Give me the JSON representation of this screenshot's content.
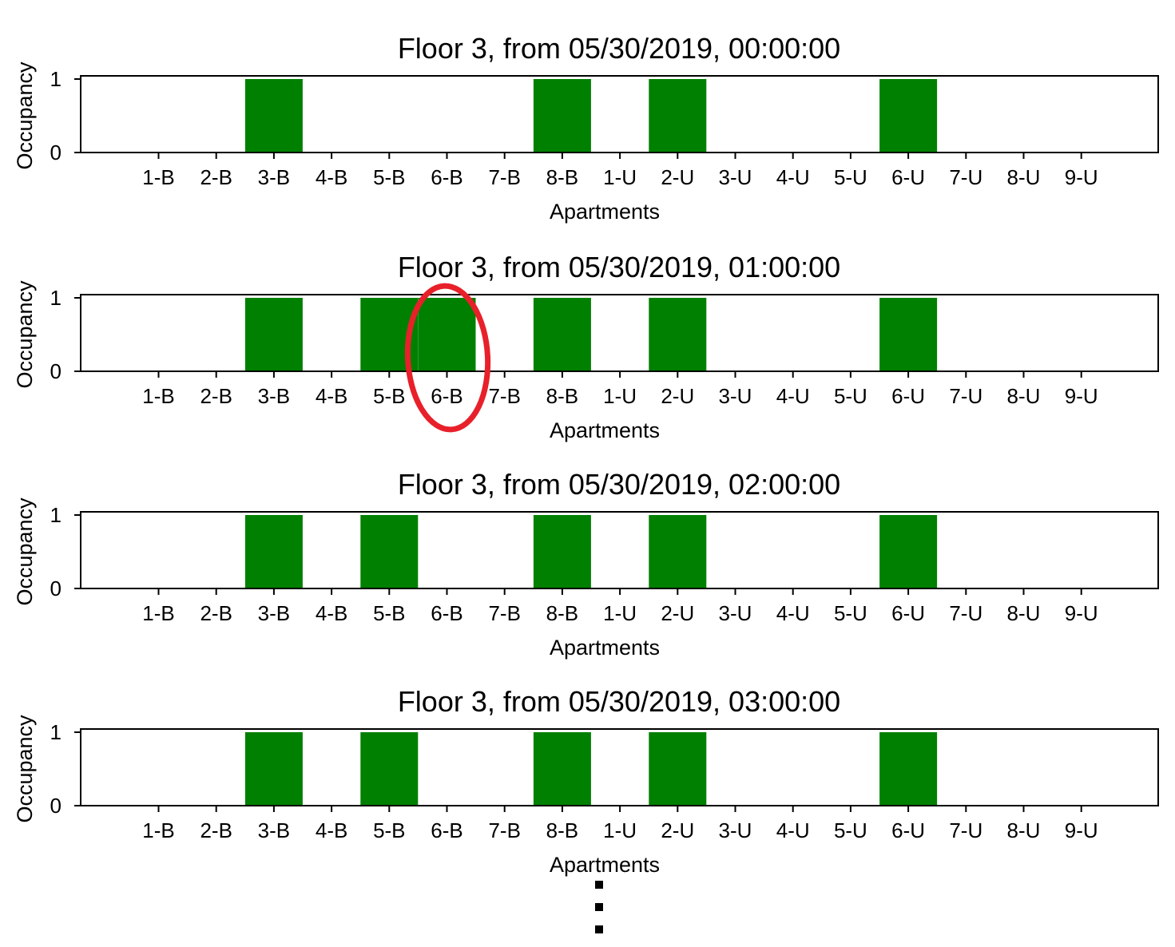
{
  "chart_data": [
    {
      "type": "bar",
      "title": "Floor 3, from 05/30/2019, 00:00:00",
      "xlabel": "Apartments",
      "ylabel": "Occupancy",
      "ylim": [
        0,
        1
      ],
      "yticks": [
        "0",
        "1"
      ],
      "categories": [
        "1-B",
        "2-B",
        "3-B",
        "4-B",
        "5-B",
        "6-B",
        "7-B",
        "8-B",
        "1-U",
        "2-U",
        "3-U",
        "4-U",
        "5-U",
        "6-U",
        "7-U",
        "8-U",
        "9-U"
      ],
      "values": [
        0,
        0,
        1,
        0,
        0,
        0,
        0,
        1,
        0,
        1,
        0,
        0,
        0,
        1,
        0,
        0,
        0
      ],
      "color": "#008000"
    },
    {
      "type": "bar",
      "title": "Floor 3, from 05/30/2019, 01:00:00",
      "xlabel": "Apartments",
      "ylabel": "Occupancy",
      "ylim": [
        0,
        1
      ],
      "yticks": [
        "0",
        "1"
      ],
      "categories": [
        "1-B",
        "2-B",
        "3-B",
        "4-B",
        "5-B",
        "6-B",
        "7-B",
        "8-B",
        "1-U",
        "2-U",
        "3-U",
        "4-U",
        "5-U",
        "6-U",
        "7-U",
        "8-U",
        "9-U"
      ],
      "values": [
        0,
        0,
        1,
        0,
        1,
        1,
        0,
        1,
        0,
        1,
        0,
        0,
        0,
        1,
        0,
        0,
        0
      ],
      "color": "#008000",
      "highlight": {
        "category": "6-B",
        "color": "#e8202a"
      }
    },
    {
      "type": "bar",
      "title": "Floor 3, from 05/30/2019, 02:00:00",
      "xlabel": "Apartments",
      "ylabel": "Occupancy",
      "ylim": [
        0,
        1
      ],
      "yticks": [
        "0",
        "1"
      ],
      "categories": [
        "1-B",
        "2-B",
        "3-B",
        "4-B",
        "5-B",
        "6-B",
        "7-B",
        "8-B",
        "1-U",
        "2-U",
        "3-U",
        "4-U",
        "5-U",
        "6-U",
        "7-U",
        "8-U",
        "9-U"
      ],
      "values": [
        0,
        0,
        1,
        0,
        1,
        0,
        0,
        1,
        0,
        1,
        0,
        0,
        0,
        1,
        0,
        0,
        0
      ],
      "color": "#008000"
    },
    {
      "type": "bar",
      "title": "Floor 3, from 05/30/2019, 03:00:00",
      "xlabel": "Apartments",
      "ylabel": "Occupancy",
      "ylim": [
        0,
        1
      ],
      "yticks": [
        "0",
        "1"
      ],
      "categories": [
        "1-B",
        "2-B",
        "3-B",
        "4-B",
        "5-B",
        "6-B",
        "7-B",
        "8-B",
        "1-U",
        "2-U",
        "3-U",
        "4-U",
        "5-U",
        "6-U",
        "7-U",
        "8-U",
        "9-U"
      ],
      "values": [
        0,
        0,
        1,
        0,
        1,
        0,
        0,
        1,
        0,
        1,
        0,
        0,
        0,
        1,
        0,
        0,
        0
      ],
      "color": "#008000"
    }
  ]
}
